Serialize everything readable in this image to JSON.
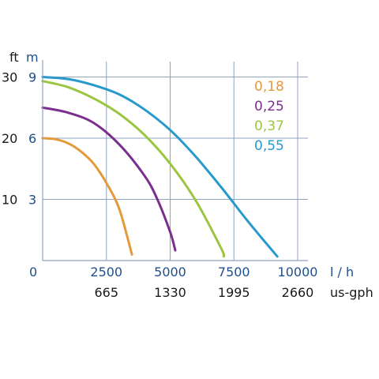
{
  "chart_data": {
    "type": "line",
    "title": "",
    "xlabel": "l / h",
    "xlabel_secondary": "us-gph",
    "ylabel_ft": "ft",
    "ylabel_m": "m",
    "xlim": [
      0,
      10000
    ],
    "ylim_m": [
      0,
      9.6
    ],
    "x_ticks": [
      "0",
      "2500",
      "5000",
      "7500",
      "10000"
    ],
    "x_ticks_values": [
      0,
      2500,
      5000,
      7500,
      10000
    ],
    "x_ticks_secondary": [
      "665",
      "1330",
      "1995",
      "2660"
    ],
    "x_ticks_secondary_values": [
      2500,
      5000,
      7500,
      10000
    ],
    "y_ticks_m": [
      "3",
      "6",
      "9"
    ],
    "y_ticks_m_values": [
      3,
      6,
      9
    ],
    "y_ticks_ft": [
      "10",
      "20",
      "30"
    ],
    "y_ticks_ft_values": [
      3,
      6,
      9
    ],
    "grid": true,
    "legend_position": "top-right",
    "series": [
      {
        "name": "0,18",
        "color": "#e39a3a",
        "points": [
          [
            0,
            6.0
          ],
          [
            500,
            5.95
          ],
          [
            1000,
            5.75
          ],
          [
            1500,
            5.35
          ],
          [
            2000,
            4.75
          ],
          [
            2500,
            3.8
          ],
          [
            3000,
            2.55
          ],
          [
            3500,
            0.3
          ]
        ]
      },
      {
        "name": "0,25",
        "color": "#7a2f8e",
        "points": [
          [
            0,
            7.5
          ],
          [
            1000,
            7.25
          ],
          [
            2000,
            6.75
          ],
          [
            3000,
            5.7
          ],
          [
            4000,
            4.15
          ],
          [
            4500,
            3.0
          ],
          [
            5000,
            1.4
          ],
          [
            5200,
            0.5
          ]
        ]
      },
      {
        "name": "0,37",
        "color": "#9bc641",
        "points": [
          [
            0,
            8.8
          ],
          [
            1000,
            8.5
          ],
          [
            2000,
            7.95
          ],
          [
            3000,
            7.2
          ],
          [
            4000,
            6.15
          ],
          [
            5000,
            4.75
          ],
          [
            6000,
            2.95
          ],
          [
            7000,
            0.6
          ],
          [
            7100,
            0.2
          ]
        ]
      },
      {
        "name": "0,55",
        "color": "#2899cc",
        "points": [
          [
            0,
            9.0
          ],
          [
            1000,
            8.9
          ],
          [
            2000,
            8.6
          ],
          [
            3000,
            8.15
          ],
          [
            4000,
            7.4
          ],
          [
            5000,
            6.4
          ],
          [
            6000,
            5.1
          ],
          [
            7000,
            3.6
          ],
          [
            8000,
            2.0
          ],
          [
            9200,
            0.2
          ]
        ]
      }
    ]
  }
}
